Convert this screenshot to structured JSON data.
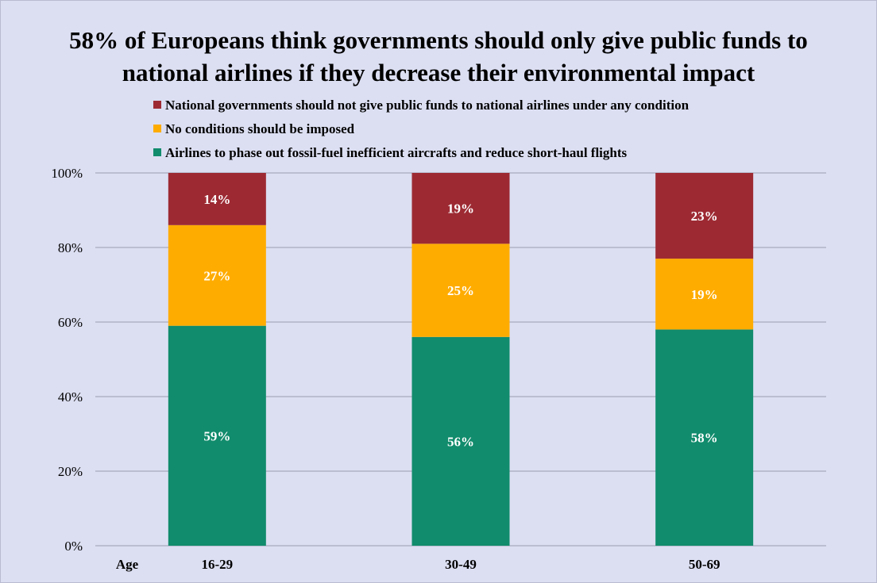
{
  "colors": {
    "background": "#dcdff2",
    "gridline": "#9a9cae",
    "text": "#000000",
    "data_label": "#ffffff"
  },
  "chart_data": {
    "type": "bar",
    "stacked": true,
    "title_lines": [
      "58% of Europeans think governments should only give public funds to",
      "national airlines if they decrease their environmental impact"
    ],
    "xlabel": "Age",
    "ylabel": "",
    "ylim": [
      0,
      100
    ],
    "yticks": [
      0,
      20,
      40,
      60,
      80,
      100
    ],
    "ytick_labels": [
      "0%",
      "20%",
      "40%",
      "60%",
      "80%",
      "100%"
    ],
    "grid": true,
    "legend_position": "top",
    "categories": [
      "16-29",
      "30-49",
      "50-69"
    ],
    "series": [
      {
        "name": "Airlines to phase out fossil-fuel inefficient aircrafts and reduce short-haul flights",
        "color": "#118c6c",
        "values": [
          59,
          56,
          58
        ],
        "labels": [
          "59%",
          "56%",
          "58%"
        ]
      },
      {
        "name": "No conditions should be imposed",
        "color": "#ffac00",
        "values": [
          27,
          25,
          19
        ],
        "labels": [
          "27%",
          "25%",
          "19%"
        ]
      },
      {
        "name": "National governments should not give public funds to national airlines under any condition",
        "color": "#9d2a33",
        "values": [
          14,
          19,
          23
        ],
        "labels": [
          "14%",
          "19%",
          "23%"
        ]
      }
    ]
  }
}
